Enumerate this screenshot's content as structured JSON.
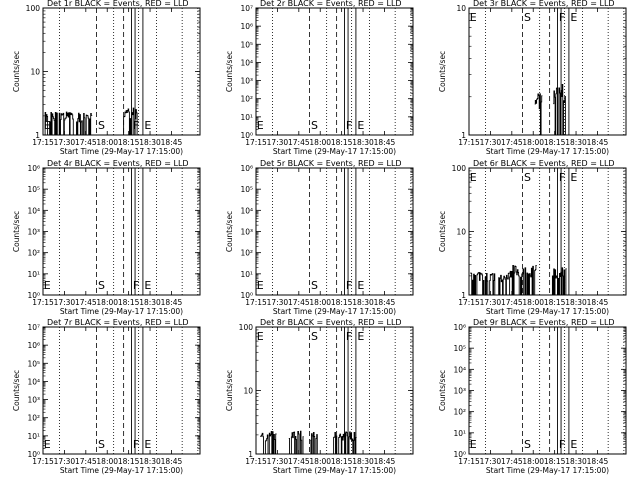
{
  "common": {
    "xlabel": "Start Time (29-May-17 17:15:00)",
    "ylabel": "Counts/sec",
    "x_ticks": [
      "17:15",
      "17:30",
      "17:45",
      "18:00",
      "18:15",
      "18:30",
      "18:45"
    ],
    "x_tick_minutes": [
      0,
      15,
      30,
      45,
      60,
      75,
      90
    ],
    "xlim_minutes": [
      0,
      110
    ],
    "dotted_lines_minutes": [
      11.5,
      49.5,
      67,
      79.5,
      97.5,
      108.5
    ],
    "dashed_lines_minutes": [
      37.5,
      56.5
    ],
    "solid_lines_minutes": [
      62,
      64.5,
      70
    ],
    "markers": [
      {
        "label": "E",
        "minute": 0.5
      },
      {
        "label": "S",
        "minute": 38.5
      },
      {
        "label": "F",
        "minute": 63
      },
      {
        "label": "E",
        "minute": 71
      }
    ]
  },
  "chart_data": [
    {
      "type": "line",
      "title": "Det 1r BLACK = Events, RED = LLD",
      "yscale": "log",
      "ylim": [
        1,
        100
      ],
      "y_ticks": [
        "1",
        "10",
        "100"
      ],
      "y_tick_values": [
        1,
        10,
        100
      ],
      "marker_pos": "bottom",
      "series": [
        {
          "segments": [
            {
              "x0": 1,
              "x1": 34,
              "level": 2,
              "seed": 1
            },
            {
              "x0": 56,
              "x1": 67,
              "level": 2.3,
              "seed": 2
            }
          ]
        }
      ]
    },
    {
      "type": "line",
      "title": "Det 2r BLACK = Events, RED = LLD",
      "yscale": "log",
      "ylim": [
        1,
        10000000
      ],
      "y_ticks": [
        "10⁰",
        "10¹",
        "10²",
        "10³",
        "10⁴",
        "10⁵",
        "10⁶",
        "10⁷"
      ],
      "y_tick_values": [
        1,
        10,
        100,
        1000,
        10000,
        100000,
        1000000,
        10000000
      ],
      "marker_pos": "bottom",
      "series": [
        {
          "segments": []
        }
      ]
    },
    {
      "type": "line",
      "title": "Det 3r BLACK = Events, RED = LLD",
      "yscale": "log",
      "ylim": [
        1,
        10
      ],
      "y_ticks": [
        "1",
        "10"
      ],
      "y_tick_values": [
        1,
        10
      ],
      "marker_pos": "top",
      "series": [
        {
          "segments": [
            {
              "x0": 46,
              "x1": 51,
              "level": 2,
              "seed": 3
            },
            {
              "x0": 59,
              "x1": 68,
              "level": 2.2,
              "seed": 4
            }
          ]
        }
      ]
    },
    {
      "type": "line",
      "title": "Det 4r BLACK = Events, RED = LLD",
      "yscale": "log",
      "ylim": [
        1,
        1000000
      ],
      "y_ticks": [
        "10⁰",
        "10¹",
        "10²",
        "10³",
        "10⁴",
        "10⁵",
        "10⁶"
      ],
      "y_tick_values": [
        1,
        10,
        100,
        1000,
        10000,
        100000,
        1000000
      ],
      "marker_pos": "bottom",
      "series": [
        {
          "segments": []
        }
      ]
    },
    {
      "type": "line",
      "title": "Det 5r BLACK = Events, RED = LLD",
      "yscale": "log",
      "ylim": [
        1,
        1000000
      ],
      "y_ticks": [
        "10⁰",
        "10¹",
        "10²",
        "10³",
        "10⁴",
        "10⁵",
        "10⁶"
      ],
      "y_tick_values": [
        1,
        10,
        100,
        1000,
        10000,
        100000,
        1000000
      ],
      "marker_pos": "bottom",
      "series": [
        {
          "segments": []
        }
      ]
    },
    {
      "type": "line",
      "title": "Det 6r BLACK = Events, RED = LLD",
      "yscale": "log",
      "ylim": [
        1,
        100
      ],
      "y_ticks": [
        "1",
        "10",
        "100"
      ],
      "y_tick_values": [
        1,
        10,
        100
      ],
      "marker_pos": "top",
      "series": [
        {
          "segments": [
            {
              "x0": 1,
              "x1": 28,
              "level": 2,
              "seed": 5
            },
            {
              "x0": 28,
              "x1": 47,
              "level": 2.5,
              "seed": 6
            },
            {
              "x0": 58,
              "x1": 68,
              "level": 2.3,
              "seed": 7
            }
          ]
        }
      ]
    },
    {
      "type": "line",
      "title": "Det 7r BLACK = Events, RED = LLD",
      "yscale": "log",
      "ylim": [
        1,
        10000000
      ],
      "y_ticks": [
        "10⁰",
        "10¹",
        "10²",
        "10³",
        "10⁴",
        "10⁵",
        "10⁶",
        "10⁷"
      ],
      "y_tick_values": [
        1,
        10,
        100,
        1000,
        10000,
        100000,
        1000000,
        10000000
      ],
      "marker_pos": "bottom",
      "series": [
        {
          "segments": []
        }
      ]
    },
    {
      "type": "line",
      "title": "Det 8r BLACK = Events, RED = LLD",
      "yscale": "log",
      "ylim": [
        1,
        100
      ],
      "y_ticks": [
        "1",
        "10",
        "100"
      ],
      "y_tick_values": [
        1,
        10,
        100
      ],
      "marker_pos": "top",
      "series": [
        {
          "segments": [
            {
              "x0": 3,
              "x1": 14,
              "level": 2,
              "seed": 8
            },
            {
              "x0": 23,
              "x1": 33,
              "level": 2,
              "seed": 9
            },
            {
              "x0": 38,
              "x1": 43,
              "level": 2,
              "seed": 10
            },
            {
              "x0": 53,
              "x1": 70,
              "level": 2,
              "seed": 11
            }
          ]
        }
      ]
    },
    {
      "type": "line",
      "title": "Det 9r BLACK = Events, RED = LLD",
      "yscale": "log",
      "ylim": [
        1,
        1000000
      ],
      "y_ticks": [
        "10⁰",
        "10¹",
        "10²",
        "10³",
        "10⁴",
        "10⁵",
        "10⁶"
      ],
      "y_tick_values": [
        1,
        10,
        100,
        1000,
        10000,
        100000,
        1000000
      ],
      "marker_pos": "bottom",
      "series": [
        {
          "segments": []
        }
      ]
    }
  ]
}
